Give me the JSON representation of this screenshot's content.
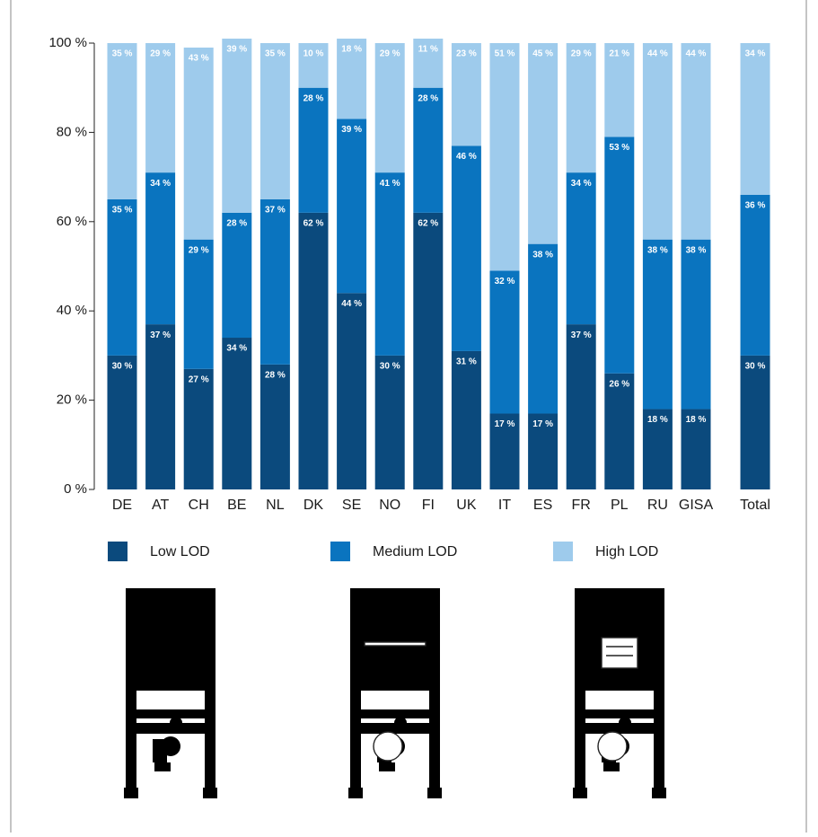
{
  "chart_data": {
    "type": "bar",
    "stacked": true,
    "categories": [
      "DE",
      "AT",
      "CH",
      "BE",
      "NL",
      "DK",
      "SE",
      "NO",
      "FI",
      "UK",
      "IT",
      "ES",
      "FR",
      "PL",
      "RU",
      "GISA",
      "Total"
    ],
    "series": [
      {
        "name": "Low LOD",
        "color": "#0b4a7d",
        "values": [
          30,
          37,
          27,
          34,
          28,
          62,
          44,
          30,
          62,
          31,
          17,
          17,
          37,
          26,
          18,
          18,
          30
        ],
        "value_labels": [
          "30 %",
          "37 %",
          "27 %",
          "34 %",
          "28 %",
          "62 %",
          "44 %",
          "30 %",
          "62 %",
          "31 %",
          "17 %",
          "17 %",
          "37 %",
          "26 %",
          "18 %",
          "18 %",
          "30 %"
        ]
      },
      {
        "name": "Medium LOD",
        "color": "#0a74bf",
        "values": [
          35,
          34,
          29,
          28,
          37,
          28,
          39,
          41,
          28,
          46,
          32,
          38,
          34,
          53,
          38,
          38,
          36
        ],
        "value_labels": [
          "35 %",
          "34 %",
          "29 %",
          "28 %",
          "37 %",
          "28 %",
          "39 %",
          "41 %",
          "28 %",
          "46 %",
          "32 %",
          "38 %",
          "34 %",
          "53 %",
          "38 %",
          "38 %",
          "36 %"
        ]
      },
      {
        "name": "High LOD",
        "color": "#9ecbec",
        "values": [
          35,
          29,
          43,
          39,
          35,
          10,
          18,
          29,
          11,
          23,
          51,
          45,
          29,
          21,
          44,
          44,
          34
        ],
        "value_labels": [
          "35 %",
          "29 %",
          "43 %",
          "39 %",
          "35 %",
          "10 %",
          "18 %",
          "29 %",
          "11 %",
          "23 %",
          "51 %",
          "45 %",
          "29 %",
          "21 %",
          "44 %",
          "44 %",
          "34 %"
        ]
      }
    ],
    "ylim": [
      0,
      100
    ],
    "yticks": [
      {
        "value": 0,
        "label": "0 %"
      },
      {
        "value": 20,
        "label": "20 %"
      },
      {
        "value": 40,
        "label": "40 %"
      },
      {
        "value": 60,
        "label": "60 %"
      },
      {
        "value": 80,
        "label": "80 %"
      },
      {
        "value": 100,
        "label": "100 %"
      }
    ],
    "grid": false,
    "legend": "bottom"
  }
}
